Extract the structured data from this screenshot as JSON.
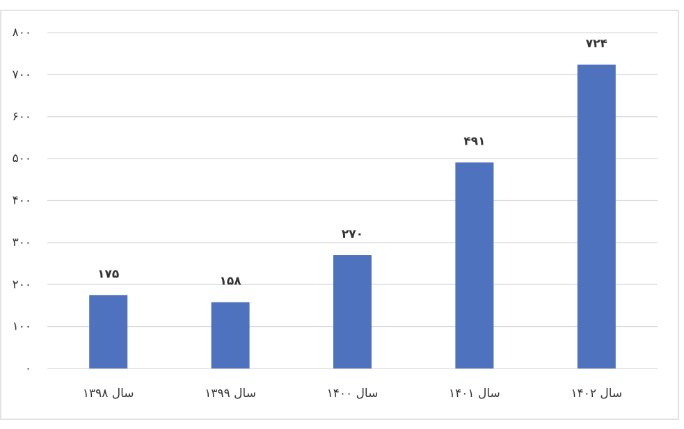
{
  "chart_data": {
    "type": "bar",
    "categories": [
      "سال ۱۳۹۸",
      "سال ۱۳۹۹",
      "سال ۱۴۰۰",
      "سال ۱۴۰۱",
      "سال ۱۴۰۲"
    ],
    "values": [
      175,
      158,
      270,
      491,
      724
    ],
    "value_labels": [
      "۱۷۵",
      "۱۵۸",
      "۲۷۰",
      "۴۹۱",
      "۷۲۴"
    ],
    "color": "#4e72be",
    "ylim": [
      0,
      800
    ],
    "yticks": [
      {
        "value": 0,
        "label": "۰"
      },
      {
        "value": 100,
        "label": "۱۰۰"
      },
      {
        "value": 200,
        "label": "۲۰۰"
      },
      {
        "value": 300,
        "label": "۳۰۰"
      },
      {
        "value": 400,
        "label": "۴۰۰"
      },
      {
        "value": 500,
        "label": "۵۰۰"
      },
      {
        "value": 600,
        "label": "۶۰۰"
      },
      {
        "value": 700,
        "label": "۷۰۰"
      },
      {
        "value": 800,
        "label": "۸۰۰"
      }
    ],
    "grid": true
  }
}
